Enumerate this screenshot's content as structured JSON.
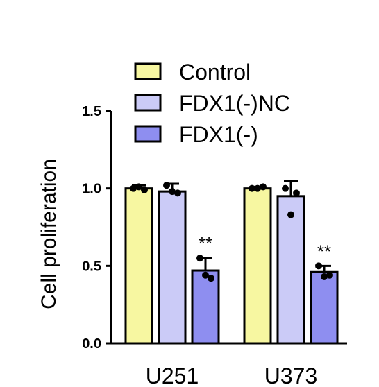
{
  "chart_data": {
    "type": "bar",
    "title": "",
    "xlabel": "",
    "ylabel": "Cell proliferation",
    "ylim": [
      0,
      1.5
    ],
    "yticks": [
      "0.0",
      "0.5",
      "1.0",
      "1.5"
    ],
    "categories": [
      "U251",
      "U373"
    ],
    "grid": false,
    "legend_position": "top",
    "series": [
      {
        "name": "Control",
        "color": "#f7f7a1",
        "values": [
          1.0,
          1.0
        ],
        "errors": [
          0.02,
          0.01
        ],
        "points": [
          [
            1.0,
            0.99,
            1.01
          ],
          [
            1.0,
            1.01,
            1.0
          ]
        ],
        "annotations": [
          "",
          ""
        ]
      },
      {
        "name": "FDX1(-)NC",
        "color": "#cbcbf7",
        "values": [
          0.98,
          0.95
        ],
        "errors": [
          0.05,
          0.1
        ],
        "points": [
          [
            1.02,
            0.97,
            0.98
          ],
          [
            1.0,
            0.97,
            0.83
          ]
        ],
        "annotations": [
          "",
          ""
        ]
      },
      {
        "name": "FDX1(-)",
        "color": "#8e8ef0",
        "values": [
          0.47,
          0.46
        ],
        "errors": [
          0.08,
          0.04
        ],
        "points": [
          [
            0.55,
            0.42,
            0.44
          ],
          [
            0.5,
            0.44,
            0.43
          ]
        ],
        "annotations": [
          "**",
          "**"
        ]
      }
    ]
  }
}
